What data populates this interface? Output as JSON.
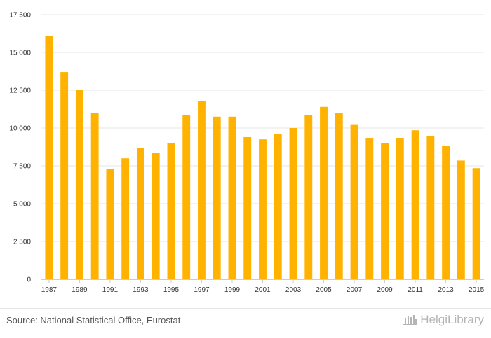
{
  "chart_data": {
    "type": "bar",
    "categories": [
      "1987",
      "1988",
      "1989",
      "1990",
      "1991",
      "1992",
      "1993",
      "1994",
      "1995",
      "1996",
      "1997",
      "1998",
      "1999",
      "2000",
      "2001",
      "2002",
      "2003",
      "2004",
      "2005",
      "2006",
      "2007",
      "2008",
      "2009",
      "2010",
      "2011",
      "2012",
      "2013",
      "2014",
      "2015"
    ],
    "values": [
      16100,
      13700,
      12500,
      11000,
      7300,
      8000,
      8700,
      8350,
      9000,
      10850,
      11800,
      10750,
      10750,
      9400,
      9250,
      9600,
      10000,
      10850,
      11400,
      11000,
      10250,
      9350,
      9000,
      9350,
      9850,
      9450,
      8800,
      7850,
      7350
    ],
    "x_tick_labels": [
      "1987",
      "1989",
      "1991",
      "1993",
      "1995",
      "1997",
      "1999",
      "2001",
      "2003",
      "2005",
      "2007",
      "2009",
      "2011",
      "2013",
      "2015"
    ],
    "y_ticks": [
      0,
      2500,
      5000,
      7500,
      10000,
      12500,
      15000,
      17500
    ],
    "y_tick_labels": [
      "0",
      "2 500",
      "5 000",
      "7 500",
      "10 000",
      "12 500",
      "15 000",
      "17 500"
    ],
    "ylim": [
      0,
      17500
    ],
    "grid": true,
    "bar_color": "#FFB300",
    "title": "",
    "xlabel": "",
    "ylabel": ""
  },
  "footer": {
    "source": "Source: National Statistical Office, Eurostat",
    "logo_text": "HelgiLibrary",
    "logo_icon": "library-building-icon"
  }
}
